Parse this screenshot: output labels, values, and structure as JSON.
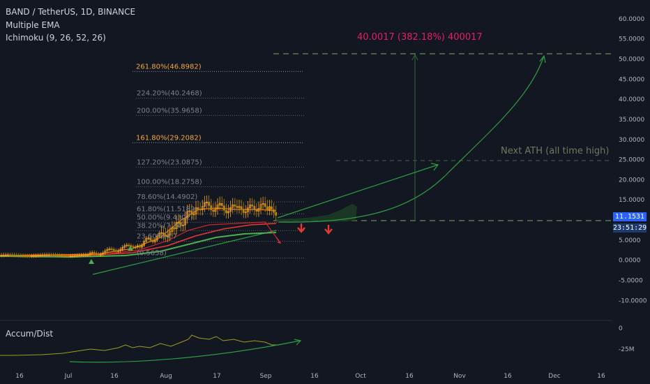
{
  "legend": {
    "title": "BAND / TetherUS, 1D, BINANCE",
    "indicator_1": "Multiple EMA",
    "indicator_2": "Ichimoku (9, 26, 52, 26)"
  },
  "price_axis": {
    "ticks": [
      "60.0000",
      "55.0000",
      "50.0000",
      "45.0000",
      "40.0000",
      "35.0000",
      "30.0000",
      "25.0000",
      "20.0000",
      "15.0000",
      "5.0000",
      "0.0000",
      "-5.0000",
      "-10.0000"
    ],
    "tick_values": [
      60,
      55,
      50,
      45,
      40,
      35,
      30,
      25,
      20,
      15,
      5,
      0,
      -5,
      -10
    ],
    "current_price_label": "11.1531",
    "countdown_label": "23:51:29"
  },
  "accum_axis": {
    "ticks": [
      "0",
      "-25M"
    ]
  },
  "time_axis": {
    "labels": [
      "16",
      "Jul",
      "16",
      "Aug",
      "17",
      "Sep",
      "16",
      "Oct",
      "16",
      "Nov",
      "16",
      "Dec",
      "16"
    ]
  },
  "fib_levels": [
    {
      "label": "261.80%(46.8982)",
      "value": 46.8982,
      "highlight": true
    },
    {
      "label": "224.20%(40.2468)",
      "value": 40.2468,
      "highlight": false
    },
    {
      "label": "200.00%(35.9658)",
      "value": 35.9658,
      "highlight": false
    },
    {
      "label": "161.80%(29.2082)",
      "value": 29.2082,
      "highlight": true
    },
    {
      "label": "127.20%(23.0875)",
      "value": 23.0875,
      "highlight": false
    },
    {
      "label": "100.00%(18.2758)",
      "value": 18.2758,
      "highlight": false
    },
    {
      "label": "78.60%(14.4902)",
      "value": 14.4902,
      "highlight": false
    },
    {
      "label": "61.80%(11.5182)",
      "value": 11.5182,
      "highlight": false
    },
    {
      "label": "50.00%(9.4302)",
      "value": 9.4302,
      "highlight": false
    },
    {
      "label": "38.20%(7.34",
      "value": 7.34,
      "highlight": false
    },
    {
      "label": "23.60%(4.7",
      "value": 4.7,
      "highlight": false
    },
    {
      "label": "(0.5658)",
      "value": 0.5658,
      "highlight": false
    }
  ],
  "annotations": {
    "measure_label": "40.0017 (382.18%) 400017",
    "ath_label": "Next ATH (all time high)"
  },
  "accum_label": "Accum/Dist",
  "chart_data": {
    "type": "line",
    "title": "BAND / TetherUS, 1D, BINANCE",
    "y_axis_range": [
      -10,
      60
    ],
    "current_price": 11.1531,
    "horizontal_levels": [
      50.9,
      25.1,
      10.3
    ],
    "price_series": [
      {
        "x": "Jun 10",
        "y": 1.2
      },
      {
        "x": "Jun 20",
        "y": 1.1
      },
      {
        "x": "Jun 30",
        "y": 1.1
      },
      {
        "x": "Jul 8",
        "y": 1.3
      },
      {
        "x": "Jul 15",
        "y": 2.0
      },
      {
        "x": "Jul 22",
        "y": 3.5
      },
      {
        "x": "Jul 28",
        "y": 4.8
      },
      {
        "x": "Aug 3",
        "y": 6.5
      },
      {
        "x": "Aug 7",
        "y": 9.5
      },
      {
        "x": "Aug 10",
        "y": 13.5
      },
      {
        "x": "Aug 14",
        "y": 14.0
      },
      {
        "x": "Aug 18",
        "y": 13.8
      },
      {
        "x": "Aug 22",
        "y": 13.0
      },
      {
        "x": "Aug 26",
        "y": 12.5
      },
      {
        "x": "Aug 30",
        "y": 14.0
      },
      {
        "x": "Sep 2",
        "y": 11.15
      }
    ],
    "projection_1": [
      {
        "x": "Sep 2",
        "y": 11.0
      },
      {
        "x": "Sep 27",
        "y": 17.0
      },
      {
        "x": "Oct 21",
        "y": 24.0
      }
    ],
    "projection_2": [
      {
        "x": "Sep 2",
        "y": 10.5
      },
      {
        "x": "Oct 10",
        "y": 14.0
      },
      {
        "x": "Nov 1",
        "y": 24.0
      },
      {
        "x": "Nov 22",
        "y": 50.5
      }
    ]
  }
}
